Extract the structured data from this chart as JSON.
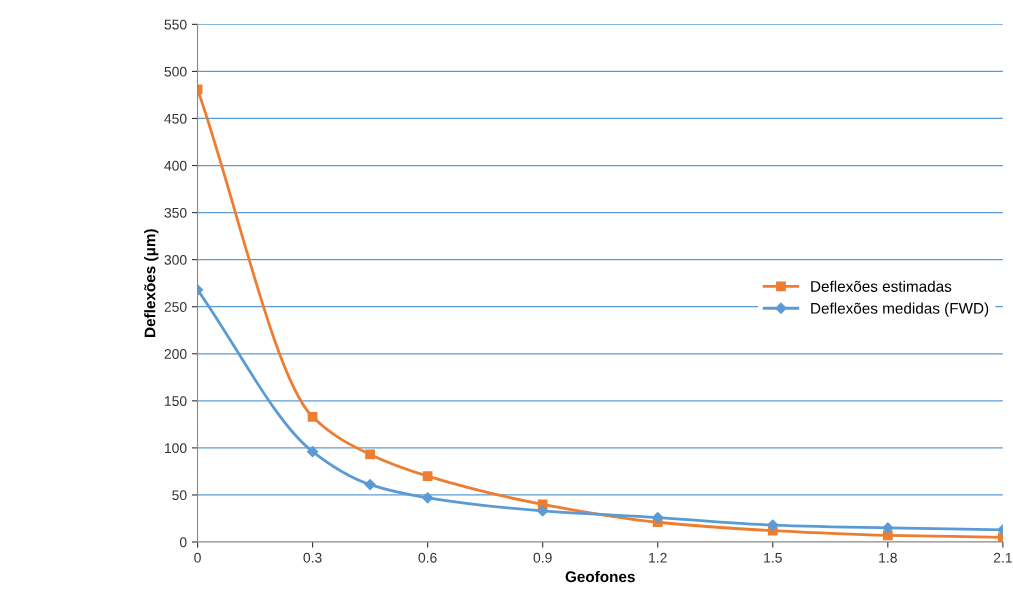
{
  "chart_data": {
    "type": "line",
    "xlabel": "Geofones",
    "ylabel": "Deflexões (μm)",
    "x": [
      0,
      0.3,
      0.45,
      0.6,
      0.9,
      1.2,
      1.5,
      1.8,
      2.1
    ],
    "series": [
      {
        "name": "Deflexões estimadas",
        "color": "#ed7d31",
        "marker": "square",
        "values": [
          481,
          133,
          93,
          70,
          40,
          21,
          12,
          7,
          5
        ]
      },
      {
        "name": "Deflexões medidas (FWD)",
        "color": "#5b9bd5",
        "marker": "diamond",
        "values": [
          268,
          96,
          61,
          47,
          33,
          26,
          18,
          15,
          13
        ]
      }
    ],
    "xlim": [
      0,
      2.1
    ],
    "xticks": [
      0,
      0.3,
      0.6,
      0.9,
      1.2,
      1.5,
      1.8,
      2.1
    ],
    "ylim": [
      0,
      550
    ],
    "yticks": [
      0,
      50,
      100,
      150,
      200,
      250,
      300,
      350,
      400,
      450,
      500,
      550
    ],
    "grid": "y",
    "legend": "right"
  }
}
